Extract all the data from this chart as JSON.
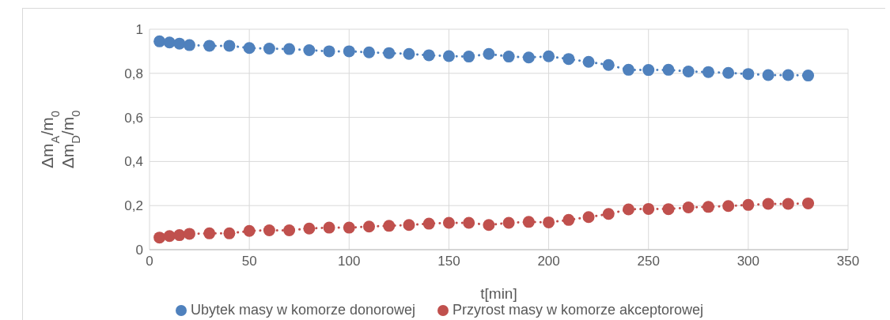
{
  "chart_data": {
    "type": "line",
    "xlabel": "t[min]",
    "ylabel": "Δm$_{A}$/m$_{0}$\nΔm$_{D}$/m$_{0}$",
    "x": [
      5,
      10,
      15,
      20,
      30,
      40,
      50,
      60,
      70,
      80,
      90,
      100,
      110,
      120,
      130,
      140,
      150,
      160,
      170,
      180,
      190,
      200,
      210,
      220,
      230,
      240,
      250,
      260,
      270,
      280,
      290,
      300,
      310,
      320,
      330
    ],
    "series": [
      {
        "name": "Ubytek masy w komorze donorowej",
        "color": "#4f81bd",
        "values": [
          0.945,
          0.94,
          0.935,
          0.928,
          0.925,
          0.925,
          0.915,
          0.912,
          0.91,
          0.905,
          0.9,
          0.9,
          0.895,
          0.892,
          0.888,
          0.882,
          0.878,
          0.876,
          0.888,
          0.876,
          0.872,
          0.877,
          0.865,
          0.852,
          0.838,
          0.816,
          0.815,
          0.816,
          0.808,
          0.806,
          0.802,
          0.797,
          0.792,
          0.792,
          0.79
        ]
      },
      {
        "name": "Przyrost masy w komorze akceptorowej",
        "color": "#c0504d",
        "values": [
          0.055,
          0.062,
          0.066,
          0.072,
          0.074,
          0.074,
          0.085,
          0.088,
          0.088,
          0.096,
          0.1,
          0.1,
          0.105,
          0.108,
          0.112,
          0.118,
          0.122,
          0.122,
          0.112,
          0.122,
          0.126,
          0.124,
          0.135,
          0.148,
          0.162,
          0.183,
          0.185,
          0.184,
          0.192,
          0.194,
          0.198,
          0.203,
          0.208,
          0.208,
          0.21
        ]
      }
    ],
    "xlim": [
      0,
      350
    ],
    "xticks": [
      0,
      50,
      100,
      150,
      200,
      250,
      300,
      350
    ],
    "ylim": [
      0,
      1
    ],
    "yticks": [
      0,
      {
        "value": 0.2,
        "label": "0,2"
      },
      {
        "value": 0.4,
        "label": "0,4"
      },
      {
        "value": 0.6,
        "label": "0,6"
      },
      {
        "value": 0.8,
        "label": "0,8"
      },
      1
    ],
    "grid": true,
    "legend": "bottom",
    "marker": "circle",
    "line_style": "dotted"
  }
}
